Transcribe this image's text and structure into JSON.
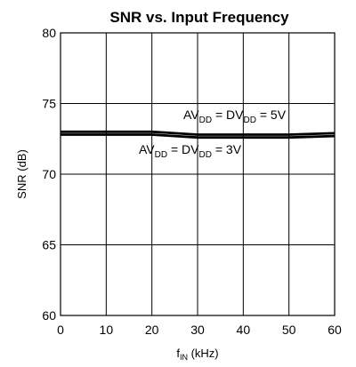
{
  "chart_data": {
    "type": "line",
    "title": "SNR vs. Input Frequency",
    "ylabel": "SNR (dB)",
    "xlabel": {
      "base": "f",
      "sub": "IN",
      "rest": " (kHz)"
    },
    "xlim": [
      0,
      60
    ],
    "ylim": [
      60,
      80
    ],
    "xticks": [
      "0",
      "10",
      "20",
      "30",
      "40",
      "50",
      "60"
    ],
    "yticks": [
      "60",
      "65",
      "70",
      "75",
      "80"
    ],
    "grid": true,
    "series": [
      {
        "label": {
          "a": "AV",
          "a_sub": "DD",
          "eq1": " = DV",
          "b_sub": "DD",
          "eq2": " = 5V"
        },
        "x": [
          0,
          10,
          20,
          25,
          30,
          40,
          50,
          60
        ],
        "y": [
          73.0,
          73.0,
          73.0,
          72.9,
          72.8,
          72.8,
          72.8,
          72.9
        ]
      },
      {
        "label": {
          "a": "AV",
          "a_sub": "DD",
          "eq1": " = DV",
          "b_sub": "DD",
          "eq2": " = 3V"
        },
        "x": [
          0,
          10,
          20,
          25,
          30,
          40,
          50,
          60
        ],
        "y": [
          72.8,
          72.8,
          72.8,
          72.7,
          72.6,
          72.6,
          72.6,
          72.7
        ]
      }
    ]
  }
}
